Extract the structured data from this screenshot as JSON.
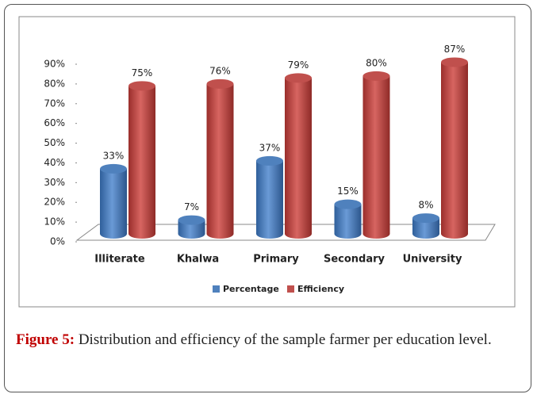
{
  "chart_data": {
    "type": "bar3d",
    "categories": [
      "Illiterate",
      "Khalwa",
      "Primary",
      "Secondary",
      "University"
    ],
    "series": [
      {
        "name": "Percentage",
        "color": "#4f81bd",
        "values": [
          33,
          7,
          37,
          15,
          8
        ],
        "value_labels": [
          "33%",
          "7%",
          "37%",
          "15%",
          "8%"
        ]
      },
      {
        "name": "Efficiency",
        "color": "#c0504d",
        "values": [
          75,
          76,
          79,
          80,
          87
        ],
        "value_labels": [
          "75%",
          "76%",
          "79%",
          "80%",
          "87%"
        ]
      }
    ],
    "ylim": [
      0,
      90
    ],
    "yticks": [
      {
        "value": 0,
        "label": "0%"
      },
      {
        "value": 10,
        "label": "10%"
      },
      {
        "value": 20,
        "label": "20%"
      },
      {
        "value": 30,
        "label": "30%"
      },
      {
        "value": 40,
        "label": "40%"
      },
      {
        "value": 50,
        "label": "50%"
      },
      {
        "value": 60,
        "label": "60%"
      },
      {
        "value": 70,
        "label": "70%"
      },
      {
        "value": 80,
        "label": "80%"
      },
      {
        "value": 90,
        "label": "90%"
      }
    ],
    "legend": "bottom"
  },
  "caption": {
    "label": "Figure 5:",
    "text": "Distribution and efficiency of the sample farmer per education level."
  }
}
